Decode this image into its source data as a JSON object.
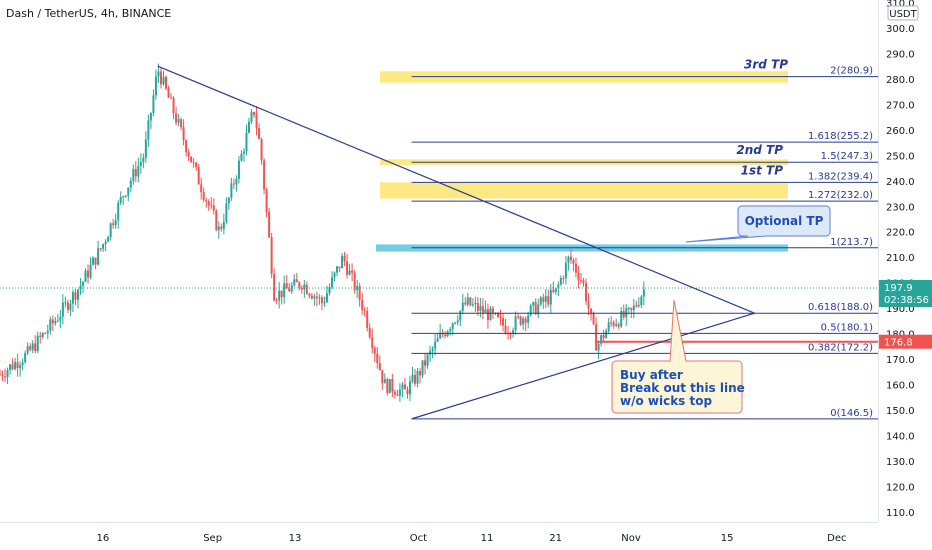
{
  "chart_data": {
    "type": "candlestick",
    "title": "Dash / TetherUS, 4h, BINANCE",
    "currency": "USDT",
    "y_range": [
      106,
      311
    ],
    "y_ticks": [
      110,
      120,
      130,
      140,
      150,
      160,
      170,
      180,
      190,
      200,
      210,
      220,
      230,
      240,
      250,
      260,
      270,
      280,
      290,
      300,
      310
    ],
    "y_tick_labels": [
      "110.0",
      "120.0",
      "130.0",
      "140.0",
      "150.0",
      "160.0",
      "170.0",
      "180.0",
      "190.0",
      "200.0",
      "210.0",
      "220.0",
      "230.0",
      "240.0",
      "250.0",
      "260.0",
      "270.0",
      "280.0",
      "290.0",
      "300.0",
      "310.0"
    ],
    "x_range": [
      "2021-08-01",
      "2021-12-07"
    ],
    "x_ticks": [
      {
        "date": "2021-08-16",
        "label": "16"
      },
      {
        "date": "2021-09-01",
        "label": "Sep"
      },
      {
        "date": "2021-09-13",
        "label": "13"
      },
      {
        "date": "2021-10-01",
        "label": "Oct"
      },
      {
        "date": "2021-10-11",
        "label": "11"
      },
      {
        "date": "2021-10-21",
        "label": "21"
      },
      {
        "date": "2021-11-01",
        "label": "Nov"
      },
      {
        "date": "2021-11-15",
        "label": "15"
      },
      {
        "date": "2021-12-01",
        "label": "Dec"
      }
    ],
    "price_path": [
      {
        "date": "2021-08-01",
        "price": 164
      },
      {
        "date": "2021-08-05",
        "price": 172
      },
      {
        "date": "2021-08-09",
        "price": 185
      },
      {
        "date": "2021-08-13",
        "price": 200
      },
      {
        "date": "2021-08-16",
        "price": 215
      },
      {
        "date": "2021-08-19",
        "price": 235
      },
      {
        "date": "2021-08-22",
        "price": 250
      },
      {
        "date": "2021-08-24",
        "price": 284
      },
      {
        "date": "2021-08-27",
        "price": 262
      },
      {
        "date": "2021-08-30",
        "price": 240
      },
      {
        "date": "2021-09-02",
        "price": 220
      },
      {
        "date": "2021-09-05",
        "price": 248
      },
      {
        "date": "2021-09-07",
        "price": 268
      },
      {
        "date": "2021-09-08",
        "price": 252
      },
      {
        "date": "2021-09-10",
        "price": 195
      },
      {
        "date": "2021-09-14",
        "price": 200
      },
      {
        "date": "2021-09-17",
        "price": 192
      },
      {
        "date": "2021-09-20",
        "price": 210
      },
      {
        "date": "2021-09-23",
        "price": 190
      },
      {
        "date": "2021-09-26",
        "price": 160
      },
      {
        "date": "2021-09-29",
        "price": 157
      },
      {
        "date": "2021-10-01",
        "price": 164
      },
      {
        "date": "2021-10-04",
        "price": 178
      },
      {
        "date": "2021-10-08",
        "price": 192
      },
      {
        "date": "2021-10-11",
        "price": 188
      },
      {
        "date": "2021-10-14",
        "price": 182
      },
      {
        "date": "2021-10-18",
        "price": 190
      },
      {
        "date": "2021-10-21",
        "price": 196
      },
      {
        "date": "2021-10-23",
        "price": 210
      },
      {
        "date": "2021-10-25",
        "price": 200
      },
      {
        "date": "2021-10-27",
        "price": 175
      },
      {
        "date": "2021-10-29",
        "price": 184
      },
      {
        "date": "2021-11-01",
        "price": 188
      },
      {
        "date": "2021-11-03",
        "price": 197.9
      }
    ],
    "last_price": {
      "value": 197.9,
      "label": "197.9",
      "countdown": "02:38:56"
    },
    "level_tag": {
      "value": 176.8,
      "label": "176.8"
    },
    "fib_levels": [
      {
        "label": "2(280.9)",
        "value": 280.9
      },
      {
        "label": "1.618(255.2)",
        "value": 255.2
      },
      {
        "label": "1.5(247.3)",
        "value": 247.3
      },
      {
        "label": "1.382(239.4)",
        "value": 239.4
      },
      {
        "label": "1.272(232.0)",
        "value": 232.0
      },
      {
        "label": "1(213.7)",
        "value": 213.7
      },
      {
        "label": "0.618(188.0)",
        "value": 188.0
      },
      {
        "label": "0.5(180.1)",
        "value": 180.1
      },
      {
        "label": "0.382(172.2)",
        "value": 172.2
      },
      {
        "label": "0(146.5)",
        "value": 146.5
      }
    ],
    "tp_labels": [
      {
        "text": "3rd TP",
        "value": 280.9
      },
      {
        "text": "2nd TP",
        "value": 247.3
      },
      {
        "text": "1st TP",
        "value": 239.4
      }
    ],
    "highlight_bands": [
      {
        "from": 278.5,
        "to": 283.0,
        "color": "#fbe56f"
      },
      {
        "from": 246.2,
        "to": 248.4,
        "color": "#fbe56f"
      },
      {
        "from": 233.0,
        "to": 239.4,
        "color": "#fbe56f"
      },
      {
        "from": 212.2,
        "to": 215.0,
        "color": "#5bc5e0"
      }
    ],
    "triangle": {
      "upper": [
        {
          "date": "2021-08-24",
          "price": 285
        },
        {
          "date": "2021-11-10",
          "price": 195
        }
      ],
      "lower": [
        {
          "date": "2021-09-30",
          "price": 146.5
        },
        {
          "date": "2021-11-18",
          "price": 188
        }
      ],
      "tip": {
        "date": "2021-11-19",
        "price": 188
      }
    },
    "callouts": [
      {
        "lines": [
          "Optional TP"
        ]
      },
      {
        "lines": [
          "Buy after",
          "Break out this line",
          "w/o wicks top"
        ]
      }
    ],
    "colors": {
      "up": "#26a69a",
      "down": "#ef5350",
      "line": "#2a3c8f",
      "callout_bg": "#fdf5d8",
      "callout_border": "#e57373",
      "callout2_bg": "#dde8fb",
      "callout2_border": "#5a7fd6",
      "last_price": "#26a69a",
      "level_tag": "#ef5350"
    }
  }
}
